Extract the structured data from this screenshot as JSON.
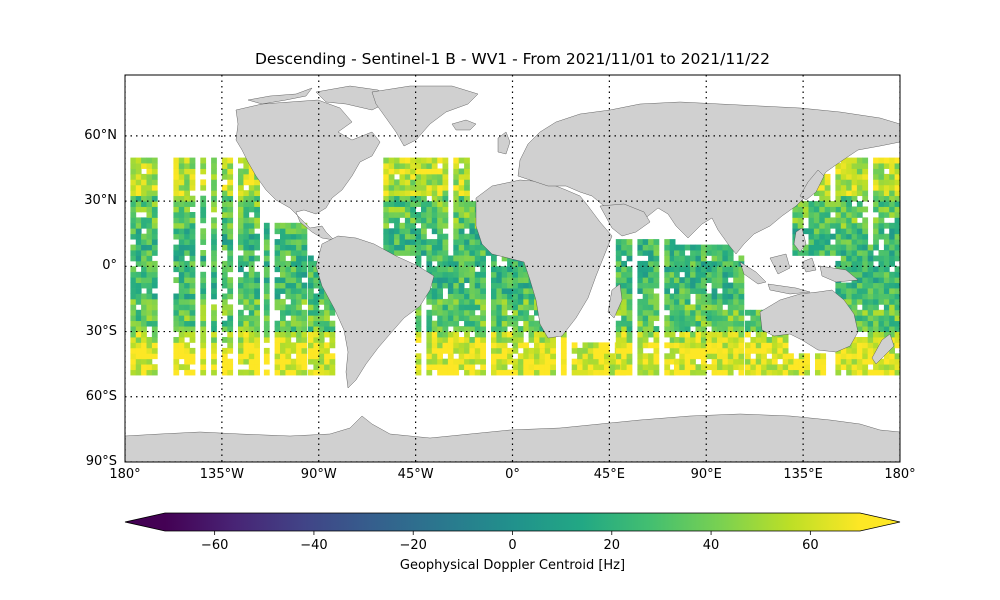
{
  "title": "Descending - Sentinel-1 B - WV1 - From 2021/11/01 to 2021/11/22",
  "map": {
    "projection": "plate-carree",
    "lon_range": [
      -180,
      180
    ],
    "lat_range": [
      -90,
      90
    ],
    "gridlines": "dotted",
    "land_color": "#d0d0d0",
    "lat_ticks": [
      {
        "value": 60,
        "label": "60°N"
      },
      {
        "value": 30,
        "label": "30°N"
      },
      {
        "value": 0,
        "label": "0°"
      },
      {
        "value": -30,
        "label": "30°S"
      },
      {
        "value": -60,
        "label": "60°S"
      },
      {
        "value": -90,
        "label": "90°S"
      }
    ],
    "lon_ticks": [
      {
        "value": -180,
        "label": "180°"
      },
      {
        "value": -135,
        "label": "135°W"
      },
      {
        "value": -90,
        "label": "90°W"
      },
      {
        "value": -45,
        "label": "45°W"
      },
      {
        "value": 0,
        "label": "0°"
      },
      {
        "value": 45,
        "label": "45°E"
      },
      {
        "value": 90,
        "label": "90°E"
      },
      {
        "value": 135,
        "label": "135°E"
      },
      {
        "value": 180,
        "label": "180°"
      }
    ],
    "data_coverage": {
      "lat_band": [
        -50,
        50
      ],
      "pattern": "swath-strips over oceans, ~2.5° cells",
      "value_range_hz": [
        -70,
        70
      ],
      "typical_hz": "10 to 70"
    }
  },
  "colorbar": {
    "colormap": "viridis",
    "range": [
      -70,
      70
    ],
    "extend": "both",
    "ticks": [
      {
        "value": -60,
        "label": "−60"
      },
      {
        "value": -40,
        "label": "−40"
      },
      {
        "value": -20,
        "label": "−20"
      },
      {
        "value": 0,
        "label": "0"
      },
      {
        "value": 20,
        "label": "20"
      },
      {
        "value": 40,
        "label": "40"
      },
      {
        "value": 60,
        "label": "60"
      }
    ],
    "label": "Geophysical Doppler Centroid [Hz]"
  }
}
